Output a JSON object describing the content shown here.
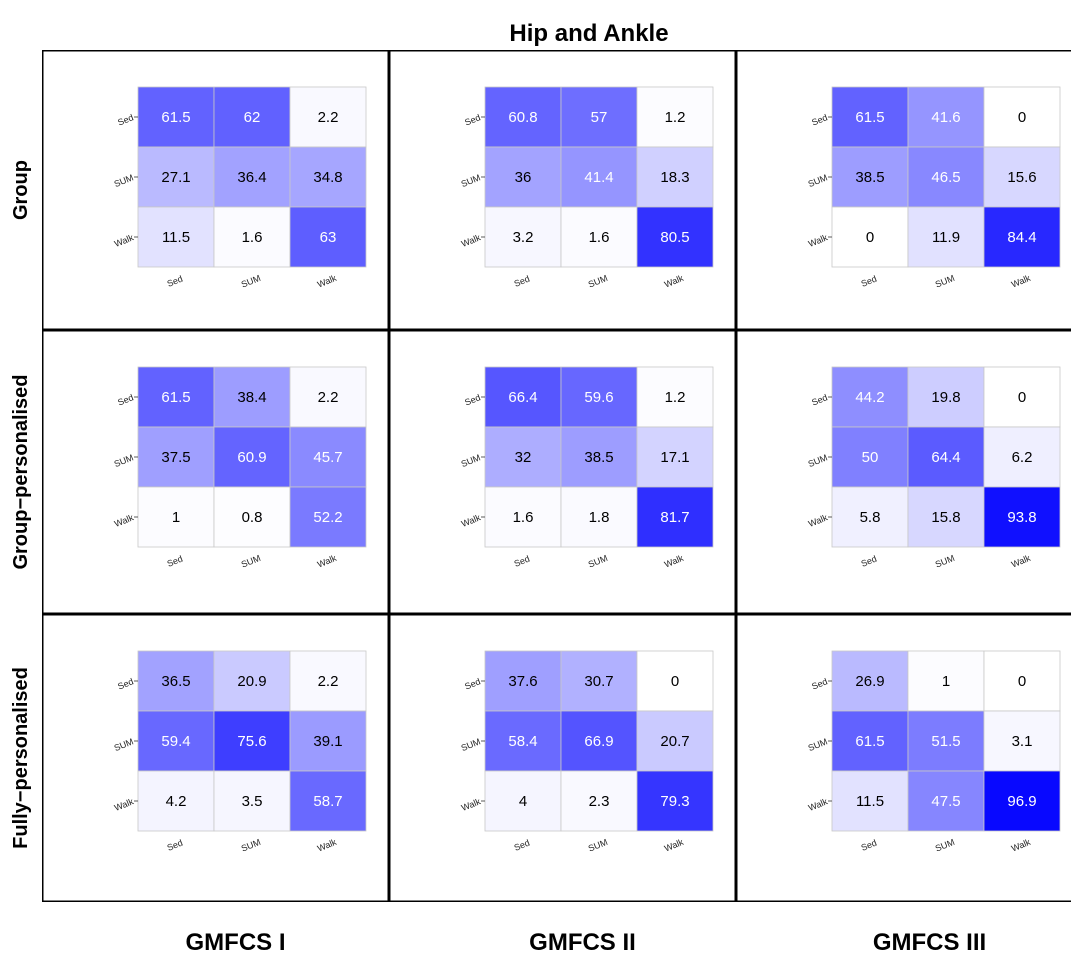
{
  "title": "Hip and Ankle",
  "row_labels": [
    "Group",
    "Group−personalised",
    "Fully−personalised"
  ],
  "col_labels": [
    "GMFCS I",
    "GMFCS II",
    "GMFCS III"
  ],
  "chart_data": {
    "type": "heatmap",
    "title": "Hip and Ankle",
    "x_categories": [
      "Sed",
      "SUM",
      "Walk"
    ],
    "y_categories": [
      "Sed",
      "SUM",
      "Walk"
    ],
    "color_scale": {
      "low": "#ffffff",
      "high": "#0000ff",
      "min": 0,
      "max": 100
    },
    "panels": [
      {
        "row": "Group",
        "col": "GMFCS I",
        "values": [
          [
            61.5,
            62,
            2.2
          ],
          [
            27.1,
            36.4,
            34.8
          ],
          [
            11.5,
            1.6,
            63
          ]
        ]
      },
      {
        "row": "Group",
        "col": "GMFCS II",
        "values": [
          [
            60.8,
            57,
            1.2
          ],
          [
            36,
            41.4,
            18.3
          ],
          [
            3.2,
            1.6,
            80.5
          ]
        ]
      },
      {
        "row": "Group",
        "col": "GMFCS III",
        "values": [
          [
            61.5,
            41.6,
            0
          ],
          [
            38.5,
            46.5,
            15.6
          ],
          [
            0,
            11.9,
            84.4
          ]
        ]
      },
      {
        "row": "Group−personalised",
        "col": "GMFCS I",
        "values": [
          [
            61.5,
            38.4,
            2.2
          ],
          [
            37.5,
            60.9,
            45.7
          ],
          [
            1,
            0.8,
            52.2
          ]
        ]
      },
      {
        "row": "Group−personalised",
        "col": "GMFCS II",
        "values": [
          [
            66.4,
            59.6,
            1.2
          ],
          [
            32,
            38.5,
            17.1
          ],
          [
            1.6,
            1.8,
            81.7
          ]
        ]
      },
      {
        "row": "Group−personalised",
        "col": "GMFCS III",
        "values": [
          [
            44.2,
            19.8,
            0
          ],
          [
            50,
            64.4,
            6.2
          ],
          [
            5.8,
            15.8,
            93.8
          ]
        ]
      },
      {
        "row": "Fully−personalised",
        "col": "GMFCS I",
        "values": [
          [
            36.5,
            20.9,
            2.2
          ],
          [
            59.4,
            75.6,
            39.1
          ],
          [
            4.2,
            3.5,
            58.7
          ]
        ]
      },
      {
        "row": "Fully−personalised",
        "col": "GMFCS II",
        "values": [
          [
            37.6,
            30.7,
            0
          ],
          [
            58.4,
            66.9,
            20.7
          ],
          [
            4,
            2.3,
            79.3
          ]
        ]
      },
      {
        "row": "Fully−personalised",
        "col": "GMFCS III",
        "values": [
          [
            26.9,
            1,
            0
          ],
          [
            61.5,
            51.5,
            3.1
          ],
          [
            11.5,
            47.5,
            96.9
          ]
        ]
      }
    ]
  }
}
